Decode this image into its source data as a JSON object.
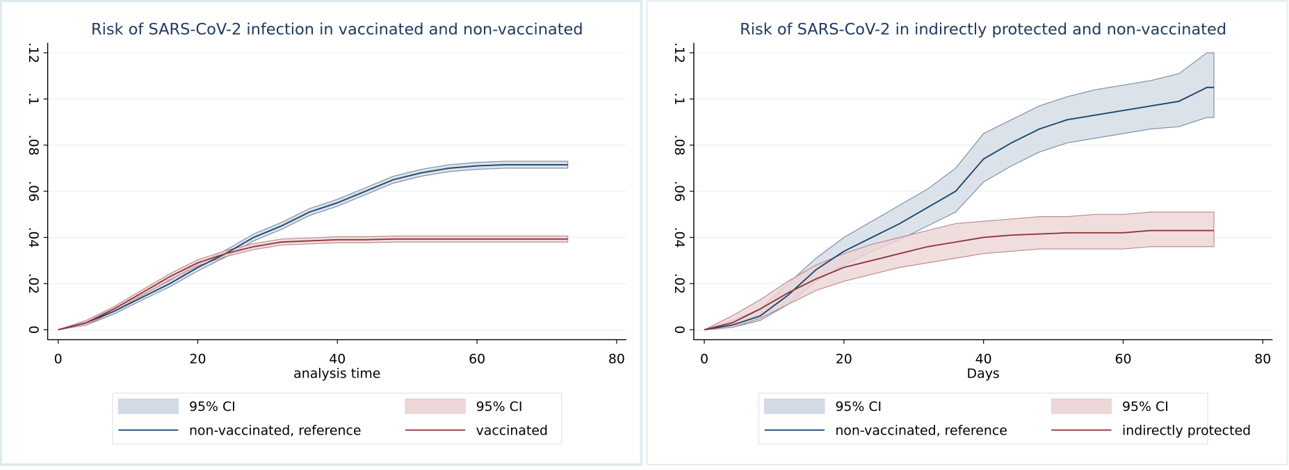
{
  "chart_data": [
    {
      "type": "line",
      "title": "Risk of SARS-CoV-2 infection in vaccinated and non-vaccinated",
      "x_label": "analysis time",
      "x": [
        0,
        4,
        8,
        12,
        16,
        20,
        24,
        28,
        32,
        36,
        40,
        44,
        48,
        52,
        56,
        60,
        64,
        68,
        72,
        73
      ],
      "series": [
        {
          "name": "non-vaccinated, reference",
          "color": "#1a476f",
          "values": [
            0,
            0.003,
            0.008,
            0.014,
            0.02,
            0.027,
            0.033,
            0.04,
            0.045,
            0.051,
            0.055,
            0.06,
            0.065,
            0.068,
            0.07,
            0.071,
            0.0715,
            0.0715,
            0.0715,
            0.0715
          ],
          "ci": {
            "name": "95% CI",
            "color": "#d3dbe4",
            "edge": "#7d8fa6",
            "lower": [
              0,
              0.002,
              0.0068,
              0.0128,
              0.0186,
              0.0255,
              0.0315,
              0.0385,
              0.0435,
              0.0495,
              0.0535,
              0.0585,
              0.0635,
              0.0665,
              0.0685,
              0.0695,
              0.07,
              0.07,
              0.07,
              0.07
            ],
            "upper": [
              0,
              0.004,
              0.0092,
              0.0152,
              0.0214,
              0.0285,
              0.0345,
              0.0415,
              0.0465,
              0.0525,
              0.0565,
              0.0615,
              0.0665,
              0.0695,
              0.0715,
              0.0725,
              0.073,
              0.073,
              0.073,
              0.073
            ]
          }
        },
        {
          "name": "vaccinated",
          "color": "#90353b",
          "values": [
            0,
            0.003,
            0.009,
            0.016,
            0.023,
            0.029,
            0.033,
            0.036,
            0.038,
            0.0385,
            0.039,
            0.039,
            0.0393,
            0.0393,
            0.0393,
            0.0393,
            0.0393,
            0.0393,
            0.0393,
            0.0393
          ],
          "ci": {
            "name": "95% CI",
            "color": "#ecd6d7",
            "edge": "#c08a8d",
            "lower": [
              0,
              0.002,
              0.008,
              0.0148,
              0.0217,
              0.0277,
              0.0317,
              0.0347,
              0.0367,
              0.0372,
              0.0377,
              0.0377,
              0.038,
              0.038,
              0.038,
              0.038,
              0.038,
              0.038,
              0.038,
              0.038
            ],
            "upper": [
              0,
              0.004,
              0.01,
              0.0172,
              0.0243,
              0.0303,
              0.0343,
              0.0373,
              0.0393,
              0.0398,
              0.0403,
              0.0403,
              0.0406,
              0.0406,
              0.0406,
              0.0406,
              0.0406,
              0.0406,
              0.0406,
              0.0406
            ]
          }
        }
      ],
      "xlim": [
        -1.5,
        81.4
      ],
      "xticks": [
        0,
        20,
        40,
        60,
        80
      ],
      "ylim": [
        -0.0043,
        0.1243
      ],
      "yticks": [
        0,
        {
          "value": 0.02,
          "label": ".02"
        },
        {
          "value": 0.04,
          "label": ".04"
        },
        {
          "value": 0.06,
          "label": ".06"
        },
        {
          "value": 0.08,
          "label": ".08"
        },
        {
          "value": 0.1,
          "label": ".1"
        },
        {
          "value": 0.12,
          "label": ".12"
        }
      ],
      "grid": true
    },
    {
      "type": "line",
      "title": "Risk of SARS-CoV-2 in indirectly protected and non-vaccinated",
      "x_label": "Days",
      "x": [
        0,
        4,
        8,
        12,
        16,
        20,
        24,
        28,
        32,
        36,
        40,
        44,
        48,
        52,
        56,
        60,
        64,
        68,
        72,
        73
      ],
      "series": [
        {
          "name": "non-vaccinated, reference",
          "color": "#1a476f",
          "values": [
            0,
            0.002,
            0.006,
            0.015,
            0.026,
            0.034,
            0.04,
            0.046,
            0.053,
            0.06,
            0.074,
            0.081,
            0.087,
            0.091,
            0.093,
            0.095,
            0.097,
            0.099,
            0.105,
            0.105
          ],
          "ci": {
            "name": "95% CI",
            "color": "#d3dbe4",
            "edge": "#7d8fa6",
            "lower": [
              0,
              0.001,
              0.004,
              0.011,
              0.021,
              0.028,
              0.034,
              0.039,
              0.045,
              0.051,
              0.064,
              0.071,
              0.077,
              0.081,
              0.083,
              0.085,
              0.087,
              0.088,
              0.092,
              0.092
            ],
            "upper": [
              0,
              0.004,
              0.009,
              0.02,
              0.031,
              0.04,
              0.047,
              0.054,
              0.061,
              0.07,
              0.085,
              0.091,
              0.097,
              0.101,
              0.104,
              0.106,
              0.108,
              0.111,
              0.12,
              0.12
            ]
          }
        },
        {
          "name": "indirectly protected",
          "color": "#90353b",
          "values": [
            0,
            0.003,
            0.009,
            0.016,
            0.022,
            0.027,
            0.03,
            0.033,
            0.036,
            0.038,
            0.04,
            0.041,
            0.0415,
            0.042,
            0.042,
            0.042,
            0.043,
            0.043,
            0.043,
            0.043
          ],
          "ci": {
            "name": "95% CI",
            "color": "#ecd6d7",
            "edge": "#c08a8d",
            "lower": [
              0,
              0.001,
              0.005,
              0.011,
              0.017,
              0.021,
              0.024,
              0.027,
              0.029,
              0.031,
              0.033,
              0.034,
              0.035,
              0.035,
              0.035,
              0.035,
              0.036,
              0.036,
              0.036,
              0.036
            ],
            "upper": [
              0,
              0.006,
              0.013,
              0.021,
              0.028,
              0.033,
              0.037,
              0.04,
              0.043,
              0.046,
              0.047,
              0.048,
              0.049,
              0.049,
              0.05,
              0.05,
              0.051,
              0.051,
              0.051,
              0.051
            ]
          }
        }
      ],
      "xlim": [
        -1.5,
        81.4
      ],
      "xticks": [
        0,
        20,
        40,
        60,
        80
      ],
      "ylim": [
        -0.0043,
        0.1243
      ],
      "yticks": [
        0,
        {
          "value": 0.02,
          "label": ".02"
        },
        {
          "value": 0.04,
          "label": ".04"
        },
        {
          "value": 0.06,
          "label": ".06"
        },
        {
          "value": 0.08,
          "label": ".08"
        },
        {
          "value": 0.1,
          "label": ".1"
        },
        {
          "value": 0.12,
          "label": ".12"
        }
      ],
      "grid": true
    }
  ]
}
